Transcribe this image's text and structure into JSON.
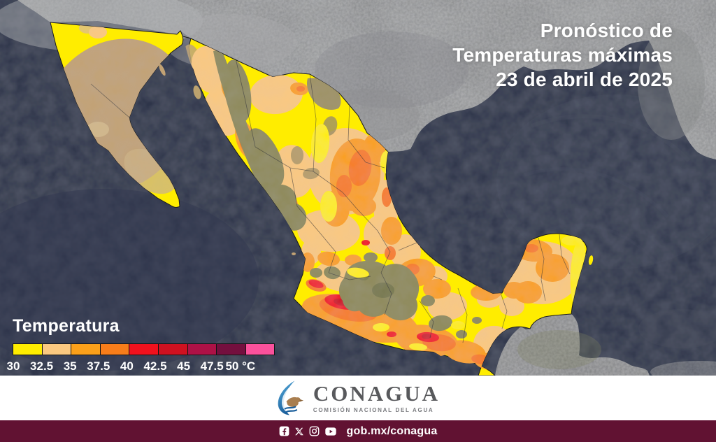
{
  "title": {
    "line1": "Pronóstico de",
    "line2": "Temperaturas máximas",
    "line3": "23 de abril de 2025"
  },
  "legend": {
    "title": "Temperatura",
    "labels": [
      "30",
      "32.5",
      "35",
      "37.5",
      "40",
      "42.5",
      "45",
      "47.5",
      "50 °C"
    ],
    "colors": [
      "#FFED00",
      "#FBC980",
      "#FBA01A",
      "#F87D1A",
      "#F1111D",
      "#CF1120",
      "#AE1146",
      "#740F3E",
      "#FB519C"
    ]
  },
  "branding": {
    "logo_text": "CONAGUA",
    "logo_tagline": "COMISIÓN NACIONAL DEL AGUA"
  },
  "footer": {
    "link": "gob.mx/conagua",
    "social": [
      "facebook",
      "x",
      "instagram",
      "youtube"
    ]
  },
  "colors": {
    "ocean": "#2B3046",
    "us_land": "#9A9B9D",
    "neighbor_land": "#8F9092",
    "terrain_olive": "#8F8A58",
    "baja_terrain": "#C2A274",
    "footer_bg": "#611232",
    "band_bg": "#FFFFFF",
    "title_text": "#FFFFFF"
  }
}
